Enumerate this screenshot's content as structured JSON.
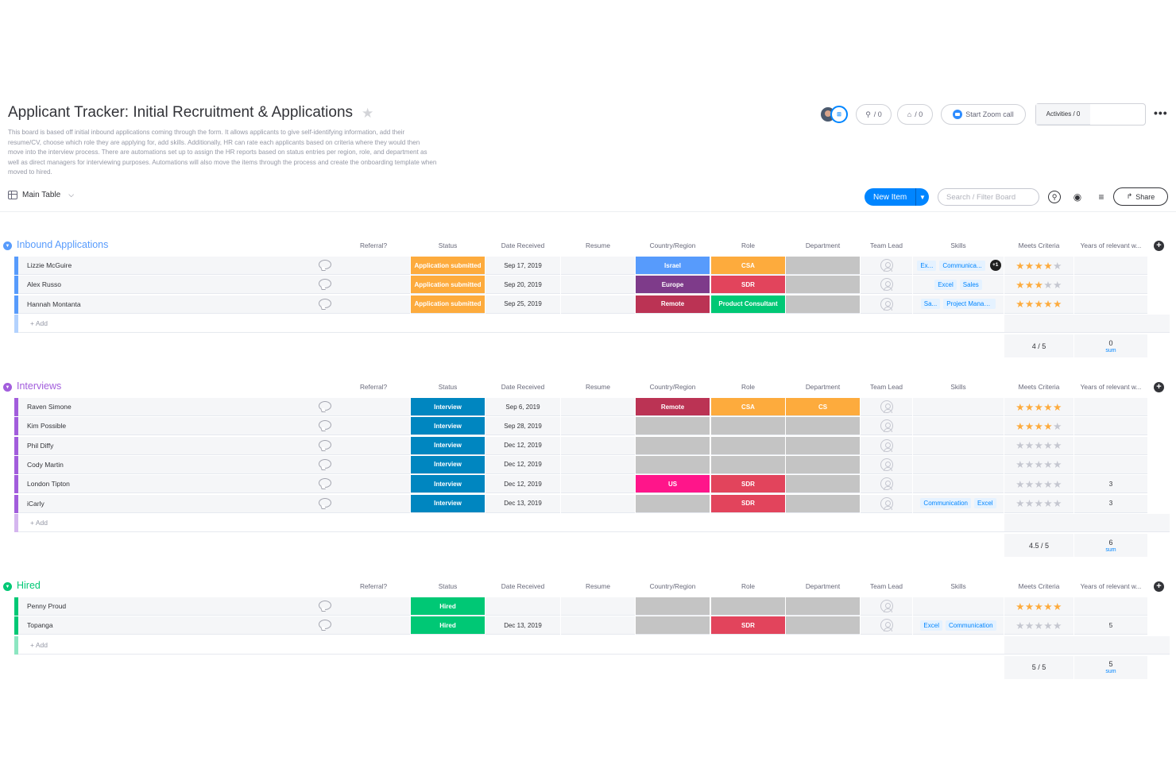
{
  "board": {
    "title": "Applicant Tracker: Initial Recruitment & Applications",
    "description": "This board is based off initial inbound applications coming through the form. It allows applicants to give self-identifying information, add their resume/CV, choose which role they are applying for, add skills. Additionally, HR can rate each applicants based on criteria where they would then move into the interview process. There are automations set up to assign the HR reports based on status entries per region, role, and department as well as direct managers for interviewing purposes. Automations will also move the items through the process and create the onboarding template when moved to hired."
  },
  "header": {
    "integrations_count": "/ 0",
    "automations_count": "/ 0",
    "zoom_label": "Start Zoom call",
    "members_count": "/ 1",
    "activities_label": "Activities / 0"
  },
  "toolbar": {
    "view_label": "Main Table",
    "new_item_label": "New Item",
    "search_placeholder": "Search / Filter Board",
    "share_label": "Share"
  },
  "columns": {
    "referral": "Referral?",
    "status": "Status",
    "date": "Date Received",
    "resume": "Resume",
    "country": "Country/Region",
    "role": "Role",
    "department": "Department",
    "team_lead": "Team Lead",
    "skills": "Skills",
    "meets": "Meets Criteria",
    "years": "Years of relevant w..."
  },
  "colors": {
    "inbound": "#579bfc",
    "interviews": "#a25ddc",
    "hired": "#00c875",
    "status_submitted": "#fdab3d",
    "status_interview": "#0086c0",
    "status_hired": "#00c875",
    "israel": "#579bfc",
    "europe": "#7e3b8a",
    "remote": "#bb3354",
    "us": "#ff158a",
    "csa": "#fdab3d",
    "sdr": "#e2445c",
    "product_consultant": "#00c875",
    "cs": "#fdab3d"
  },
  "add_label": "+ Add",
  "groups": [
    {
      "title": "Inbound Applications",
      "rows": [
        {
          "name": "Lizzie McGuire",
          "status": "Application submitted",
          "date": "Sep 17, 2019",
          "country": "Israel",
          "role": "CSA",
          "skills": [
            "Ex...",
            "Communica..."
          ],
          "extra_skills": "+1",
          "stars": 4,
          "years": ""
        },
        {
          "name": "Alex Russo",
          "status": "Application submitted",
          "date": "Sep 20, 2019",
          "country": "Europe",
          "role": "SDR",
          "skills": [
            "Excel",
            "Sales"
          ],
          "stars": 3,
          "years": ""
        },
        {
          "name": "Hannah Montanta",
          "status": "Application submitted",
          "date": "Sep 25, 2019",
          "country": "Remote",
          "role": "Product Consultant",
          "skills": [
            "Sa...",
            "Project Manage..."
          ],
          "stars": 5,
          "years": ""
        }
      ],
      "summary": {
        "meets": "4 / 5",
        "years": "0",
        "years_label": "sum"
      }
    },
    {
      "title": "Interviews",
      "rows": [
        {
          "name": "Raven Simone",
          "status": "Interview",
          "date": "Sep 6, 2019",
          "country": "Remote",
          "role": "CSA",
          "department": "CS",
          "skills": [],
          "stars": 5,
          "years": ""
        },
        {
          "name": "Kim Possible",
          "status": "Interview",
          "date": "Sep 28, 2019",
          "country": "",
          "role": "",
          "skills": [],
          "stars": 4,
          "years": ""
        },
        {
          "name": "Phil Diffy",
          "status": "Interview",
          "date": "Dec 12, 2019",
          "country": "",
          "role": "",
          "skills": [],
          "stars": 0,
          "years": ""
        },
        {
          "name": "Cody Martin",
          "status": "Interview",
          "date": "Dec 12, 2019",
          "country": "",
          "role": "",
          "skills": [],
          "stars": 0,
          "years": ""
        },
        {
          "name": "London Tipton",
          "status": "Interview",
          "date": "Dec 12, 2019",
          "country": "US",
          "role": "SDR",
          "skills": [],
          "stars": 0,
          "years": "3"
        },
        {
          "name": "iCarly",
          "status": "Interview",
          "date": "Dec 13, 2019",
          "country": "",
          "role": "SDR",
          "skills": [
            "Communication",
            "Excel"
          ],
          "stars": 0,
          "years": "3"
        }
      ],
      "summary": {
        "meets": "4.5 / 5",
        "years": "6",
        "years_label": "sum"
      }
    },
    {
      "title": "Hired",
      "rows": [
        {
          "name": "Penny Proud",
          "status": "Hired",
          "date": "",
          "country": "",
          "role": "",
          "skills": [],
          "stars": 5,
          "years": ""
        },
        {
          "name": "Topanga",
          "status": "Hired",
          "date": "Dec 13, 2019",
          "country": "",
          "role": "SDR",
          "skills": [
            "Excel",
            "Communication"
          ],
          "stars": 0,
          "years": "5"
        }
      ],
      "summary": {
        "meets": "5 / 5",
        "years": "5",
        "years_label": "sum"
      }
    }
  ]
}
